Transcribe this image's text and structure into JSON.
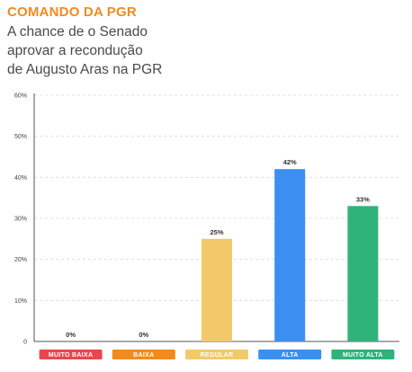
{
  "header": {
    "kicker": "COMANDO DA PGR",
    "subtitle": "A chance de o Senado\naprovar a recondução\nde Augusto Aras na PGR"
  },
  "chart_data": {
    "type": "bar",
    "categories": [
      "MUITO BAIXA",
      "BAIXA",
      "REGULAR",
      "ALTA",
      "MUITO ALTA"
    ],
    "values": [
      0,
      0,
      25,
      42,
      33
    ],
    "value_labels": [
      "0%",
      "0%",
      "25%",
      "42%",
      "33%"
    ],
    "category_colors": [
      "#e8474d",
      "#f28a1e",
      "#f2c96a",
      "#3b8ff0",
      "#2fb37a"
    ],
    "ylim": [
      0,
      60
    ],
    "yticks": [
      0,
      10,
      20,
      30,
      40,
      50,
      60
    ],
    "ytick_labels": [
      "0",
      "10%",
      "20%",
      "30%",
      "40%",
      "50%",
      "60%"
    ],
    "grid": "horizontal-dashed",
    "legend": "none",
    "xlabel": "",
    "ylabel": ""
  }
}
